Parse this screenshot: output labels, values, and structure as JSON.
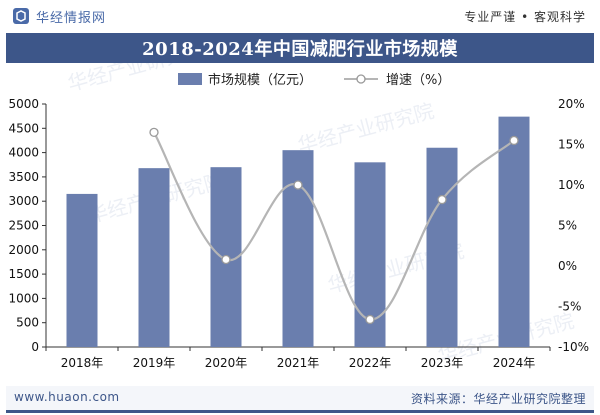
{
  "header": {
    "brand": "华经情报网",
    "tagline": "专业严谨 • 客观科学"
  },
  "title": "2018-2024年中国减肥行业市场规模",
  "colors": {
    "bar": "#6a7eae",
    "line": "#b5b5b5",
    "band": "#3d5689"
  },
  "chart_data": {
    "type": "bar",
    "title": "2018-2024年中国减肥行业市场规模",
    "categories": [
      "2018年",
      "2019年",
      "2020年",
      "2021年",
      "2022年",
      "2023年",
      "2024年"
    ],
    "series": [
      {
        "name": "市场规模（亿元）",
        "type": "bar",
        "axis": "left",
        "values": [
          3150,
          3680,
          3700,
          4050,
          3800,
          4100,
          4740
        ]
      },
      {
        "name": "增速（%）",
        "type": "line",
        "axis": "right",
        "values": [
          null,
          16.5,
          0.8,
          10.0,
          -6.6,
          8.2,
          15.5
        ]
      }
    ],
    "ylim": [
      0,
      5000
    ],
    "yticks": [
      "0",
      "500",
      "1000",
      "1500",
      "2000",
      "2500",
      "3000",
      "3500",
      "4000",
      "4500",
      "5000"
    ],
    "y2lim": [
      -10,
      20
    ],
    "y2ticks": [
      "-10%",
      "-5%",
      "0%",
      "5%",
      "10%",
      "15%",
      "20%"
    ],
    "legend": "top-center",
    "grid": false
  },
  "watermark": "华经产业研究院",
  "footer": {
    "website": "www.huaon.com",
    "source": "资料来源：华经产业研究院整理"
  }
}
